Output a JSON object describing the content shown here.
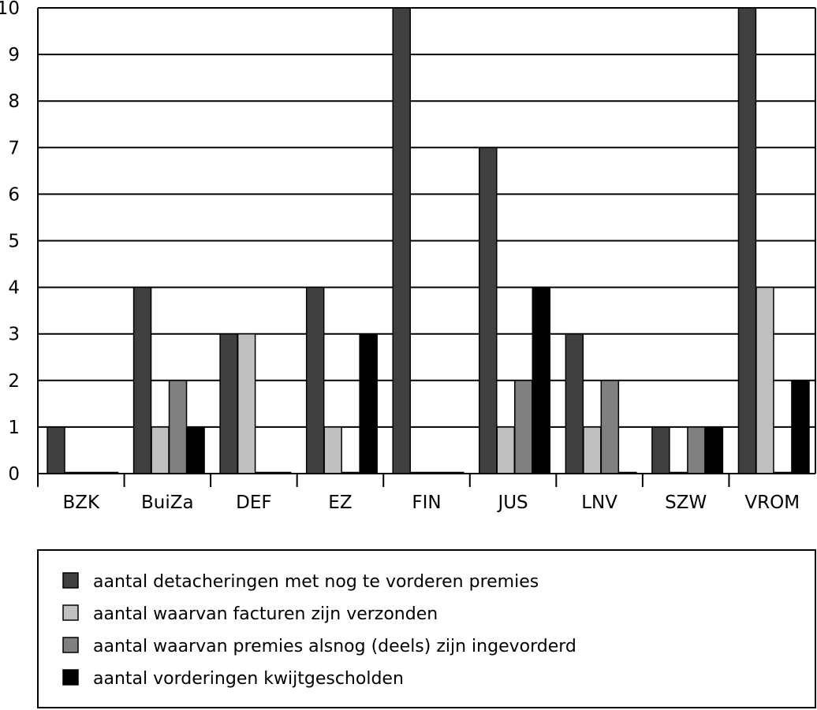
{
  "chart_data": {
    "type": "bar",
    "categories": [
      "BZK",
      "BuiZa",
      "DEF",
      "EZ",
      "FIN",
      "JUS",
      "LNV",
      "SZW",
      "VROM"
    ],
    "series": [
      {
        "name": "aantal detacheringen met nog te vorderen premies",
        "color": "#404040",
        "values": [
          1,
          4,
          3,
          4,
          10,
          7,
          3,
          1,
          10
        ]
      },
      {
        "name": "aantal waarvan facturen zijn verzonden",
        "color": "#c0c0c0",
        "values": [
          0,
          1,
          3,
          1,
          0,
          1,
          1,
          0,
          4
        ]
      },
      {
        "name": "aantal waarvan premies alsnog (deels) zijn ingevorderd",
        "color": "#808080",
        "values": [
          0,
          2,
          0,
          0,
          0,
          2,
          2,
          1,
          0
        ]
      },
      {
        "name": "aantal vorderingen kwijtgescholden",
        "color": "#000000",
        "values": [
          0,
          1,
          0,
          3,
          0,
          4,
          0,
          1,
          2
        ]
      }
    ],
    "yticks": [
      "0",
      "1",
      "2",
      "3",
      "4",
      "5",
      "6",
      "7",
      "8",
      "9",
      "10"
    ],
    "ylim": [
      0,
      10
    ],
    "grid": true,
    "legend_position": "bottom"
  }
}
